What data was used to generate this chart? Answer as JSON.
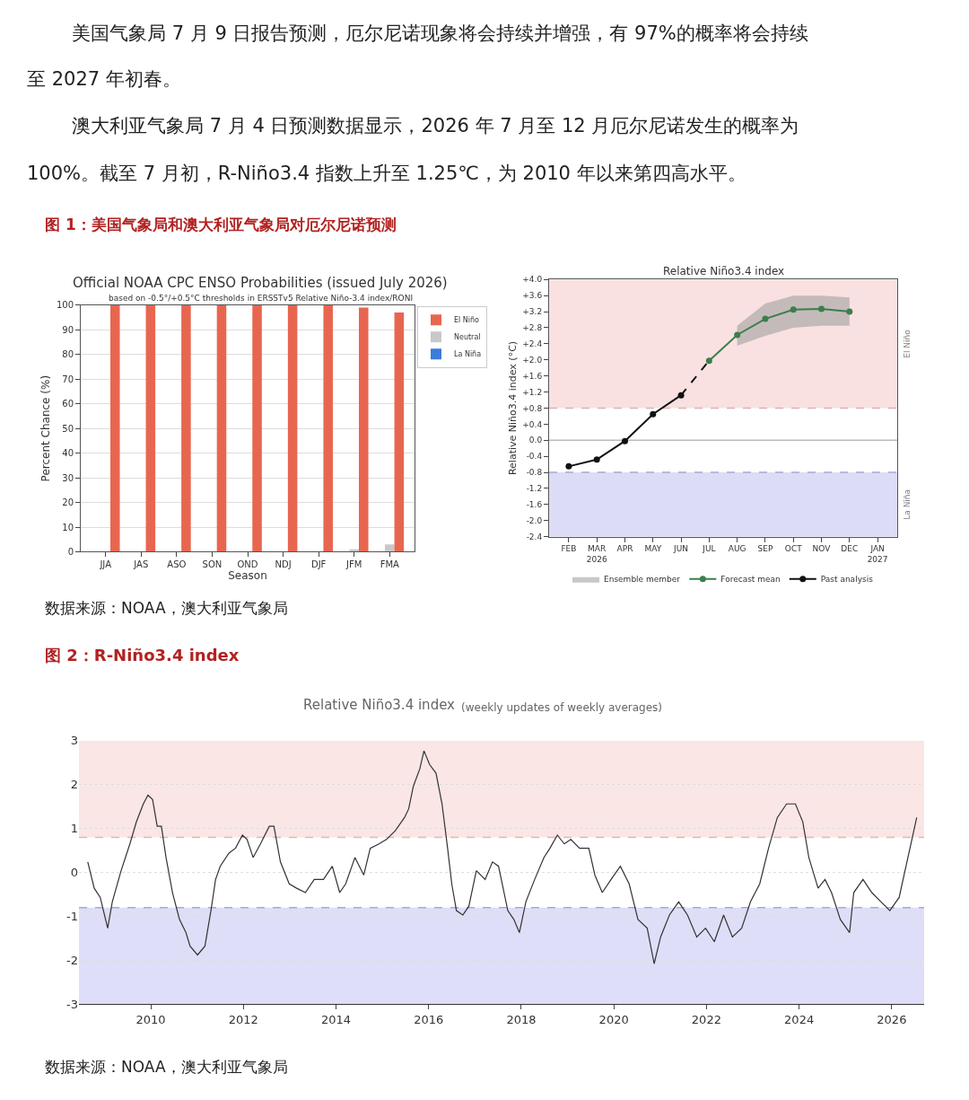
{
  "chart_data": [
    {
      "type": "bar",
      "title": "Official NOAA CPC ENSO Probabilities (issued July 2026)",
      "subtitle": "based on -0.5°/+0.5°C thresholds in ERSSTv5 Relative Niño-3.4 index/RONI",
      "annotations": [
        "美国气象局 7 月 9 日报告预测，厄尔尼诺现象将会持续并增强，有 97%的概率将会持续",
        "至 2027 年初春。",
        "澳大利亚气象局 7 月 4 日预测数据显示，2026 年 7 月至 12 月厄尔尼诺发生的概率为",
        "100%。截至 7 月初，R-Niño3.4 指数上升至 1.25℃，为 2010 年以来第四高水平。",
        "图 1：美国气象局和澳大利亚气象局对厄尔尼诺预测"
      ],
      "xlabel": "Season",
      "ylabel": "Percent Chance (%)",
      "categories": [
        "JJA",
        "JAS",
        "ASO",
        "SON",
        "OND",
        "NDJ",
        "DJF",
        "JFM",
        "FMA"
      ],
      "series": [
        {
          "name": "La Niña",
          "color": "#3b7dd8",
          "values": [
            0,
            0,
            0,
            0,
            0,
            0,
            0,
            0,
            0
          ]
        },
        {
          "name": "Neutral",
          "color": "#c8c8c8",
          "values": [
            0,
            0,
            0,
            0,
            0,
            0,
            0,
            1,
            3
          ]
        },
        {
          "name": "El Niño",
          "color": "#e8664f",
          "values": [
            100,
            100,
            100,
            100,
            100,
            100,
            100,
            99,
            97
          ]
        }
      ],
      "ylim": [
        0,
        100
      ],
      "yticks": [
        0,
        10,
        20,
        30,
        40,
        50,
        60,
        70,
        80,
        90,
        100
      ],
      "grid": "y",
      "legend": "top right"
    },
    {
      "type": "line",
      "title": "Relative Niño3.4 index",
      "ylabel": "Relative Niño3.4 index (°C)",
      "annotations": [
        "数据来源：NOAA，澳大利亚气象局"
      ],
      "categories": [
        "FEB",
        "MAR\n2026",
        "APR",
        "MAY",
        "JUN",
        "JUL",
        "AUG",
        "SEP",
        "OCT",
        "NOV",
        "DEC",
        "JAN\n2027"
      ],
      "series": [
        {
          "name": "Ensemble member",
          "type": "area",
          "color": "#9a9a9a",
          "values": [
            null,
            null,
            null,
            null,
            null,
            null,
            null,
            null,
            null,
            null,
            null,
            null
          ],
          "lower": [
            null,
            null,
            null,
            null,
            null,
            null,
            2.35,
            2.6,
            2.8,
            2.85,
            2.85,
            null
          ],
          "upper": [
            null,
            null,
            null,
            null,
            null,
            null,
            2.85,
            3.4,
            3.6,
            3.6,
            3.55,
            null
          ]
        },
        {
          "name": "Forecast mean",
          "color": "#3a7f4c",
          "marker": "circle",
          "line_style": "solid",
          "values": [
            null,
            null,
            null,
            null,
            null,
            1.98,
            2.62,
            3.02,
            3.25,
            3.27,
            3.2,
            null
          ]
        },
        {
          "name": "Past analysis",
          "color": "#111111",
          "marker": "circle",
          "line_style": "solid",
          "values": [
            -0.65,
            -0.48,
            -0.02,
            0.65,
            1.12,
            null,
            null,
            null,
            null,
            null,
            null,
            null
          ]
        },
        {
          "color": "#111111",
          "marker": "none",
          "line_style": "dashed",
          "values": [
            null,
            null,
            null,
            null,
            1.12,
            1.98,
            null,
            null,
            null,
            null,
            null,
            null
          ]
        }
      ],
      "ylim": [
        -2.4,
        4.0
      ],
      "yticks": [
        {
          "value": 4.0,
          "label": "+4.0"
        },
        {
          "value": 3.6,
          "label": "+3.6"
        },
        {
          "value": 3.2,
          "label": "+3.2"
        },
        {
          "value": 2.8,
          "label": "+2.8"
        },
        {
          "value": 2.4,
          "label": "+2.4"
        },
        {
          "value": 2.0,
          "label": "+2.0"
        },
        {
          "value": 1.6,
          "label": "+1.6"
        },
        {
          "value": 1.2,
          "label": "+1.2"
        },
        {
          "value": 0.8,
          "label": "+0.8"
        },
        {
          "value": 0.4,
          "label": "+0.4"
        },
        {
          "value": 0,
          "label": "0.0"
        },
        {
          "value": -0.4,
          "label": "-0.4"
        },
        {
          "value": -0.8,
          "label": "-0.8"
        },
        {
          "value": -1.2,
          "label": "-1.2"
        },
        {
          "value": -1.6,
          "label": "-1.6"
        },
        {
          "value": -2.0,
          "label": "-2.0"
        },
        {
          "value": -2.4,
          "label": "-2.4"
        }
      ],
      "bands": [
        {
          "axis": "y",
          "from": 0.8,
          "to": 4.0,
          "label": "El Niño",
          "color": "#f9e1e1"
        },
        {
          "axis": "y",
          "from": -2.4,
          "to": -0.8,
          "label": "La Niña",
          "color": "#dcdcf6"
        }
      ],
      "ref_lines": [
        {
          "axis": "y",
          "value": 0.8,
          "color": "#e0b0b0",
          "line_style": "dashed"
        },
        {
          "axis": "y",
          "value": -0.8,
          "color": "#a8a8d8",
          "line_style": "dashed"
        },
        {
          "axis": "y",
          "value": 0,
          "color": "#bbbbbb",
          "line_style": "solid"
        }
      ],
      "legend": "bottom"
    },
    {
      "type": "line",
      "title": "Relative Niño3.4 index",
      "subtitle": "(weekly updates of weekly averages)",
      "annotations": [
        "图 2：R-Niño3.4 index",
        "数据来源：NOAA，澳大利亚气象局"
      ],
      "x": [
        2008.64,
        2008.78,
        2008.91,
        2009.07,
        2009.17,
        2009.36,
        2009.55,
        2009.69,
        2009.84,
        2009.94,
        2010.04,
        2010.14,
        2010.23,
        2010.33,
        2010.47,
        2010.62,
        2010.76,
        2010.85,
        2011.01,
        2011.17,
        2011.3,
        2011.4,
        2011.5,
        2011.69,
        2011.83,
        2011.98,
        2012.08,
        2012.21,
        2012.37,
        2012.56,
        2012.66,
        2012.8,
        2012.99,
        2013.15,
        2013.34,
        2013.53,
        2013.73,
        2013.92,
        2014.08,
        2014.21,
        2014.41,
        2014.6,
        2014.74,
        2014.93,
        2015.09,
        2015.28,
        2015.48,
        2015.57,
        2015.67,
        2015.81,
        2015.9,
        2016.02,
        2016.16,
        2016.29,
        2016.41,
        2016.5,
        2016.6,
        2016.74,
        2016.87,
        2017.03,
        2017.22,
        2017.38,
        2017.51,
        2017.71,
        2017.84,
        2017.96,
        2018.1,
        2018.29,
        2018.49,
        2018.62,
        2018.78,
        2018.93,
        2019.07,
        2019.26,
        2019.46,
        2019.59,
        2019.75,
        2019.94,
        2020.14,
        2020.33,
        2020.52,
        2020.72,
        2020.87,
        2021.01,
        2021.2,
        2021.4,
        2021.59,
        2021.79,
        2021.98,
        2022.17,
        2022.37,
        2022.56,
        2022.76,
        2022.95,
        2023.15,
        2023.34,
        2023.53,
        2023.73,
        2023.92,
        2024.08,
        2024.21,
        2024.41,
        2024.56,
        2024.7,
        2024.89,
        2025.09,
        2025.18,
        2025.38,
        2025.57,
        2025.77,
        2025.96,
        2026.16,
        2026.35,
        2026.54
      ],
      "series": [
        {
          "color": "#333333",
          "values": [
            0.24,
            -0.36,
            -0.57,
            -1.27,
            -0.67,
            0.04,
            0.65,
            1.15,
            1.56,
            1.76,
            1.66,
            1.05,
            1.05,
            0.34,
            -0.46,
            -1.07,
            -1.37,
            -1.68,
            -1.88,
            -1.68,
            -0.87,
            -0.16,
            0.14,
            0.44,
            0.55,
            0.85,
            0.75,
            0.34,
            0.65,
            1.05,
            1.05,
            0.24,
            -0.26,
            -0.36,
            -0.46,
            -0.16,
            -0.16,
            0.14,
            -0.46,
            -0.26,
            0.34,
            -0.06,
            0.55,
            0.65,
            0.75,
            0.95,
            1.25,
            1.45,
            1.96,
            2.36,
            2.77,
            2.46,
            2.26,
            1.56,
            0.55,
            -0.26,
            -0.87,
            -0.97,
            -0.77,
            0.04,
            -0.16,
            0.24,
            0.14,
            -0.87,
            -1.07,
            -1.37,
            -0.67,
            -0.16,
            0.34,
            0.55,
            0.85,
            0.65,
            0.75,
            0.55,
            0.55,
            -0.06,
            -0.46,
            -0.16,
            0.14,
            -0.26,
            -1.07,
            -1.27,
            -2.08,
            -1.47,
            -0.97,
            -0.67,
            -0.97,
            -1.47,
            -1.27,
            -1.58,
            -0.97,
            -1.47,
            -1.27,
            -0.67,
            -0.26,
            0.55,
            1.25,
            1.56,
            1.56,
            1.15,
            0.34,
            -0.36,
            -0.16,
            -0.46,
            -1.07,
            -1.37,
            -0.46,
            -0.16,
            -0.46,
            -0.67,
            -0.87,
            -0.57,
            0.34,
            1.25
          ]
        }
      ],
      "xlim": [
        2008.45,
        2026.7
      ],
      "xticks": [
        2010,
        2012,
        2014,
        2016,
        2018,
        2020,
        2022,
        2024,
        2026
      ],
      "ylim": [
        -3,
        3
      ],
      "yticks": [
        -3,
        -2,
        -1,
        0,
        1,
        2,
        3
      ],
      "grid": "y",
      "bands": [
        {
          "axis": "y",
          "from": 0.8,
          "to": 3,
          "color": "#fbe6e6"
        },
        {
          "axis": "y",
          "from": -3,
          "to": -0.8,
          "color": "#dedef8"
        }
      ],
      "ref_lines": [
        {
          "axis": "y",
          "value": 0.8,
          "color": "#e8b4b4",
          "line_style": "dashed"
        },
        {
          "axis": "y",
          "value": -0.8,
          "color": "#a8a8dc",
          "line_style": "dashed"
        }
      ]
    }
  ]
}
